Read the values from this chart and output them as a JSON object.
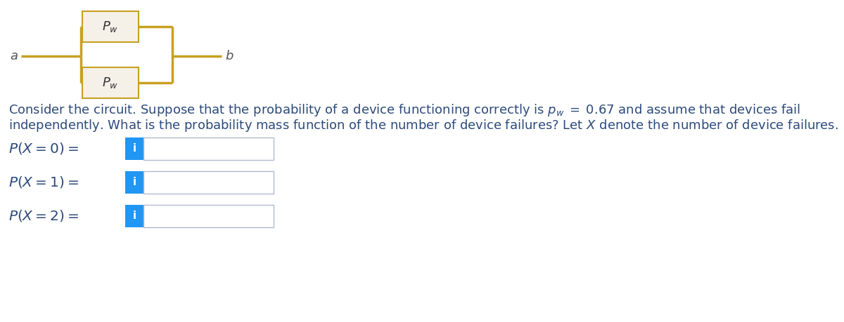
{
  "bg_color": "#ffffff",
  "circuit_color": "#c8a020",
  "box_fill": "#f5f0e8",
  "box_edge": "#c8a020",
  "text_color": "#2c4a7a",
  "label_a": "a",
  "label_b": "b",
  "pw_label": "$P_w$",
  "body_text_line1": "Consider the circuit. Suppose that the probability of a device functioning correctly is $p_w\\;=\\;0.67$ and assume that devices fail",
  "body_text_line2": "independently. What is the probability mass function of the number of device failures? Let $X$ denote the number of device failures.",
  "pmf_labels": [
    "$P(X = 0) =$",
    "$P(X = 1) =$",
    "$P(X = 2) =$"
  ],
  "input_box_color": "#2196f3",
  "input_box_text": "i",
  "input_box_text_color": "#ffffff",
  "answer_box_border": "#b0b8d0",
  "font_size_body": 13.0,
  "font_size_pmf": 14.5,
  "font_size_circuit_label": 13,
  "font_size_ab": 13
}
